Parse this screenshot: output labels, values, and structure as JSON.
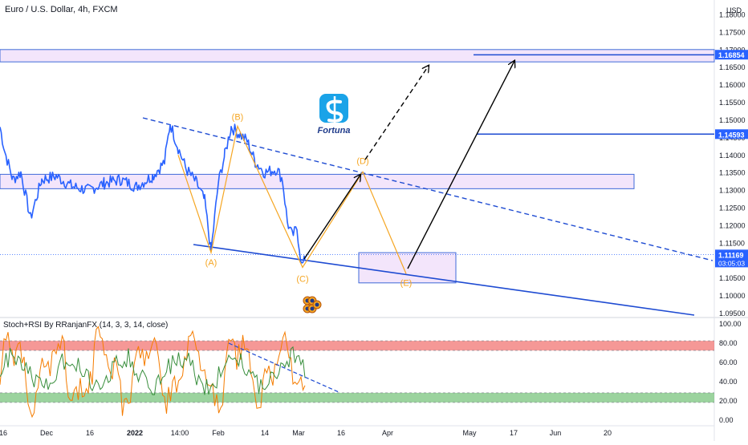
{
  "header": {
    "symbol_title": "Euro / U.S. Dollar, 4h, FXCM",
    "currency": "USD"
  },
  "logo": {
    "name": "Fortuna"
  },
  "indicator": {
    "title": "Stoch+RSI By RRanjanFX (14, 3, 3, 14, close)",
    "axis_labels": [
      "100.00",
      "80.00",
      "60.00",
      "40.00",
      "20.00",
      "0.00"
    ],
    "overbought": 80,
    "oversold": 20,
    "colors": {
      "stoch": "#f57c00",
      "rsi": "#388e3c",
      "overbought_zone": "#ef5350",
      "oversold_zone": "#66bb6a"
    }
  },
  "chart_data": {
    "type": "line",
    "xlabel": "",
    "ylabel": "",
    "ylim": [
      1.0925,
      1.1875
    ],
    "y_ticks": [
      "1.18000",
      "1.17500",
      "1.17000",
      "1.16500",
      "1.16000",
      "1.15500",
      "1.15000",
      "1.14500",
      "1.14000",
      "1.13500",
      "1.13000",
      "1.12500",
      "1.12000",
      "1.11500",
      "1.11000",
      "1.10500",
      "1.10000",
      "1.09500"
    ],
    "x_ticks": [
      "16",
      "Dec",
      "16",
      "2022",
      "14:00",
      "Feb",
      "14",
      "Mar",
      "16",
      "Apr",
      "May",
      "17",
      "Jun",
      "20"
    ],
    "price_labels": [
      {
        "label": "1.16854",
        "value": 1.16854
      },
      {
        "label": "1.14593",
        "value": 1.14593
      },
      {
        "label": "1.11169",
        "value": 1.11169,
        "countdown": "03:05:03"
      }
    ],
    "wave_labels": [
      "(A)",
      "(B)",
      "(C)",
      "(D)",
      "(E)"
    ],
    "wave_points": [
      {
        "label": "(A)",
        "value": 1.1122
      },
      {
        "label": "(B)",
        "value": 1.1482
      },
      {
        "label": "(C)",
        "value": 1.108
      },
      {
        "label": "(D)",
        "value": 1.1352
      },
      {
        "label": "(E)",
        "value": 1.1062
      }
    ],
    "zones": [
      {
        "name": "resistance",
        "from": 1.1665,
        "to": 1.17
      },
      {
        "name": "mid",
        "from": 1.1304,
        "to": 1.1345
      },
      {
        "name": "target",
        "from": 1.1036,
        "to": 1.1122
      }
    ],
    "colors": {
      "price_line": "#2962ff",
      "wave": "#f5a623",
      "trend": "#1e4bd2",
      "zone_fill": "#f3e5fb"
    }
  }
}
